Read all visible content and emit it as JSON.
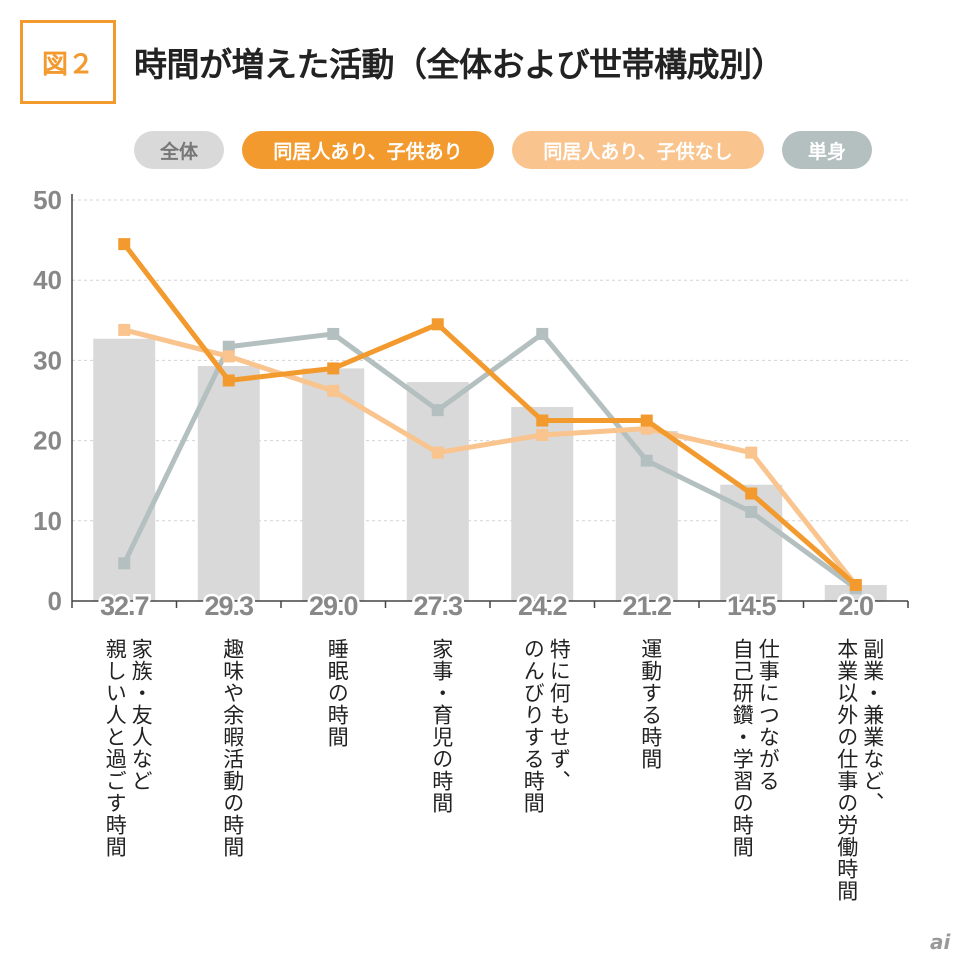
{
  "figure": {
    "label": "図２",
    "title": "時間が増えた活動（全体および世帯構成別）"
  },
  "legend": [
    {
      "name": "全体",
      "color": "#d9d9d9",
      "text_color": "#777777"
    },
    {
      "name": "同居人あり、子供あり",
      "color": "#f29a2e",
      "text_color": "#ffffff"
    },
    {
      "name": "同居人あり、子供なし",
      "color": "#f9c48e",
      "text_color": "#ffffff"
    },
    {
      "name": "単身",
      "color": "#b4bfc0",
      "text_color": "#ffffff"
    }
  ],
  "chart_data": {
    "type": "bar",
    "title": "時間が増えた活動（全体および世帯構成別）",
    "ylim": [
      0,
      50
    ],
    "yticks": [
      0,
      10,
      20,
      30,
      40,
      50
    ],
    "categories": [
      [
        "家族・友人など",
        "親しい人と過ごす時間"
      ],
      [
        "趣味や余暇活動の時間"
      ],
      [
        "睡眠の時間"
      ],
      [
        "家事・育児の時間"
      ],
      [
        "特に何もせず、",
        "のんびりする時間"
      ],
      [
        "運動する時間"
      ],
      [
        "仕事につながる",
        "自己研鑽・学習の時間"
      ],
      [
        "副業・兼業など、",
        "本業以外の仕事の労働時間"
      ]
    ],
    "series": [
      {
        "name": "全体",
        "type": "bar",
        "color": "#d9d9d9",
        "values": [
          32.7,
          29.3,
          29.0,
          27.3,
          24.2,
          21.2,
          14.5,
          2.0
        ],
        "labels": [
          "32.7",
          "29.3",
          "29.0",
          "27.3",
          "24.2",
          "21.2",
          "14.5",
          "2.0"
        ]
      },
      {
        "name": "単身",
        "type": "line",
        "color": "#b4bfc0",
        "values": [
          4.7,
          31.7,
          33.3,
          23.8,
          33.3,
          17.5,
          11.1,
          1.6
        ]
      },
      {
        "name": "同居人あり、子供なし",
        "type": "line",
        "color": "#f9c48e",
        "values": [
          33.8,
          30.5,
          26.2,
          18.5,
          20.7,
          21.5,
          18.5,
          2.0
        ]
      },
      {
        "name": "同居人あり、子供あり",
        "type": "line",
        "color": "#f29a2e",
        "values": [
          44.5,
          27.5,
          29.0,
          34.5,
          22.5,
          22.5,
          13.4,
          2.0
        ]
      }
    ]
  },
  "brand": "ai"
}
